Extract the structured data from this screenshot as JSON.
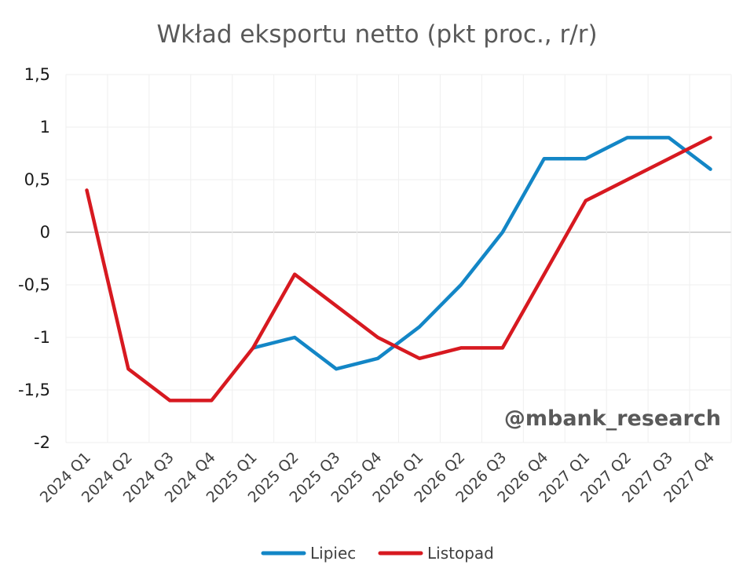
{
  "chart_data": {
    "type": "line",
    "title": "Wkład eksportu netto (pkt proc., r/r)",
    "categories": [
      "2024 Q1",
      "2024 Q2",
      "2024 Q3",
      "2024 Q4",
      "2025 Q1",
      "2025 Q2",
      "2025 Q3",
      "2025 Q4",
      "2026 Q1",
      "2026 Q2",
      "2026 Q3",
      "2026 Q4",
      "2027 Q1",
      "2027 Q2",
      "2027 Q3",
      "2027 Q4"
    ],
    "series": [
      {
        "name": "Lipiec",
        "color": "#1386c6",
        "values": [
          null,
          null,
          null,
          null,
          -1.1,
          -1.0,
          -1.3,
          -1.2,
          -0.9,
          -0.5,
          0.0,
          0.7,
          0.7,
          0.9,
          0.9,
          0.6
        ]
      },
      {
        "name": "Listopad",
        "color": "#d71920",
        "values": [
          0.4,
          -1.3,
          -1.6,
          -1.6,
          -1.1,
          -0.4,
          -0.7,
          -1.0,
          -1.2,
          -1.1,
          -1.1,
          -0.4,
          0.3,
          0.5,
          0.7,
          0.9
        ]
      }
    ],
    "ylim": [
      -2,
      1.5
    ],
    "yticks": [
      1.5,
      1,
      0.5,
      0,
      -0.5,
      -1,
      -1.5,
      -2
    ],
    "ytick_labels": [
      "1,5",
      "1",
      "0,5",
      "0",
      "-0,5",
      "-1",
      "-1,5",
      "-2"
    ],
    "grid": true,
    "legend_position": "bottom",
    "watermark": "@mbank_research"
  }
}
